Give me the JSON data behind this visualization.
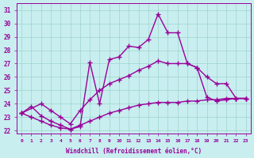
{
  "xlabel": "Windchill (Refroidissement éolien,°C)",
  "xlim": [
    -0.5,
    23.5
  ],
  "ylim": [
    21.8,
    31.5
  ],
  "yticks": [
    22,
    23,
    24,
    25,
    26,
    27,
    28,
    29,
    30,
    31
  ],
  "xticks": [
    0,
    1,
    2,
    3,
    4,
    5,
    6,
    7,
    8,
    9,
    10,
    11,
    12,
    13,
    14,
    15,
    16,
    17,
    18,
    19,
    20,
    21,
    22,
    23
  ],
  "bg_color": "#c8eef0",
  "grid_color": "#9dd4cc",
  "line_color": "#990099",
  "line_width": 1.0,
  "marker": "+",
  "marker_size": 4,
  "series1_x": [
    0,
    1,
    2,
    3,
    4,
    5,
    6,
    7,
    8,
    9,
    10,
    11,
    12,
    13,
    14,
    15,
    16,
    17,
    18,
    19,
    20,
    21,
    22,
    23
  ],
  "series1_y": [
    23.3,
    23.8,
    23.1,
    22.7,
    22.4,
    22.1,
    22.3,
    27.1,
    24.0,
    27.3,
    27.5,
    28.3,
    28.2,
    28.8,
    30.7,
    29.3,
    29.3,
    27.0,
    26.7,
    24.5,
    24.2,
    24.3,
    24.4,
    24.4
  ],
  "series2_x": [
    0,
    2,
    3,
    4,
    5,
    6,
    7,
    8,
    9,
    10,
    11,
    12,
    13,
    14,
    15,
    16,
    17,
    18,
    19,
    20,
    21,
    22,
    23
  ],
  "series2_y": [
    23.3,
    24.0,
    23.5,
    23.0,
    22.5,
    23.5,
    24.3,
    25.0,
    25.5,
    25.8,
    26.1,
    26.5,
    26.8,
    27.2,
    27.0,
    27.0,
    27.0,
    26.7,
    26.0,
    25.5,
    25.5,
    24.4,
    24.4
  ],
  "series3_x": [
    0,
    1,
    2,
    3,
    4,
    5,
    6,
    7,
    8,
    9,
    10,
    11,
    12,
    13,
    14,
    15,
    16,
    17,
    18,
    19,
    20,
    21,
    22,
    23
  ],
  "series3_y": [
    23.3,
    23.0,
    22.7,
    22.4,
    22.2,
    22.1,
    22.4,
    22.7,
    23.0,
    23.3,
    23.5,
    23.7,
    23.9,
    24.0,
    24.1,
    24.1,
    24.1,
    24.2,
    24.2,
    24.3,
    24.3,
    24.4,
    24.4,
    24.4
  ]
}
